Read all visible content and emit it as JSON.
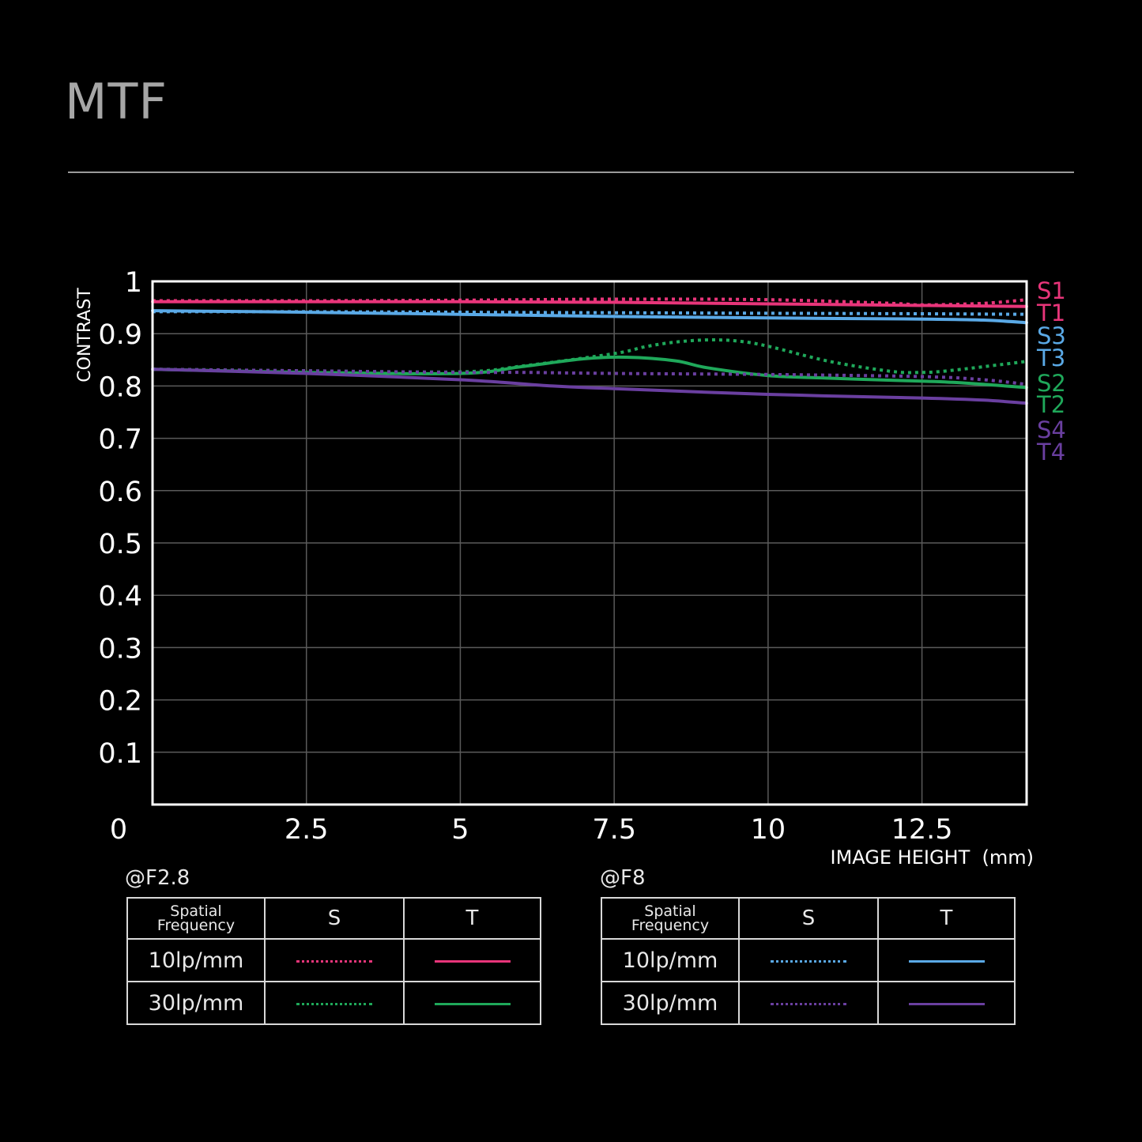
{
  "title": "MTF",
  "chart_data": {
    "type": "line",
    "ylabel": "CONTRAST",
    "xlabel": "IMAGE HEIGHT  (mm)",
    "xlim": [
      0,
      14.2
    ],
    "ylim": [
      0,
      1
    ],
    "x_ticks": [
      "0",
      "2.5",
      "5",
      "7.5",
      "10",
      "12.5"
    ],
    "x_tick_values": [
      0,
      2.5,
      5,
      7.5,
      10,
      12.5
    ],
    "y_ticks": [
      "1",
      "0.9",
      "0.8",
      "0.7",
      "0.6",
      "0.5",
      "0.4",
      "0.3",
      "0.2",
      "0.1"
    ],
    "y_tick_values": [
      1,
      0.9,
      0.8,
      0.7,
      0.6,
      0.5,
      0.4,
      0.3,
      0.2,
      0.1
    ],
    "grid": true,
    "series": [
      {
        "name": "S1",
        "color": "#e8357a",
        "dash": true,
        "x": [
          0,
          2.5,
          5,
          7.5,
          10,
          12,
          12.5,
          13.5,
          14.2
        ],
        "y": [
          0.963,
          0.963,
          0.964,
          0.966,
          0.965,
          0.958,
          0.955,
          0.958,
          0.965
        ]
      },
      {
        "name": "T1",
        "color": "#e8357a",
        "dash": false,
        "x": [
          0,
          2.5,
          5,
          7.5,
          10,
          12.5,
          14.2
        ],
        "y": [
          0.961,
          0.961,
          0.961,
          0.96,
          0.957,
          0.954,
          0.952
        ]
      },
      {
        "name": "S3",
        "color": "#5aa9e6",
        "dash": true,
        "x": [
          0,
          2.5,
          5,
          7.5,
          10,
          12.5,
          14.2
        ],
        "y": [
          0.942,
          0.942,
          0.941,
          0.94,
          0.939,
          0.938,
          0.937
        ]
      },
      {
        "name": "T3",
        "color": "#5aa9e6",
        "dash": false,
        "x": [
          0,
          2.5,
          5,
          7.5,
          10,
          12.5,
          13.5,
          14.2
        ],
        "y": [
          0.944,
          0.941,
          0.937,
          0.933,
          0.93,
          0.928,
          0.926,
          0.921
        ]
      },
      {
        "name": "S2",
        "color": "#1fa85a",
        "dash": true,
        "x": [
          0,
          2.5,
          5,
          6,
          7.5,
          8,
          8.5,
          9,
          9.5,
          10,
          11,
          12,
          12.5,
          13,
          14.2
        ],
        "y": [
          0.832,
          0.829,
          0.827,
          0.838,
          0.862,
          0.875,
          0.884,
          0.888,
          0.886,
          0.876,
          0.847,
          0.828,
          0.826,
          0.83,
          0.847
        ]
      },
      {
        "name": "T2",
        "color": "#1fa85a",
        "dash": false,
        "x": [
          0,
          2.5,
          5,
          6,
          7,
          7.7,
          8.5,
          9,
          10,
          11,
          12,
          13,
          14.2
        ],
        "y": [
          0.832,
          0.826,
          0.824,
          0.837,
          0.852,
          0.855,
          0.848,
          0.835,
          0.82,
          0.815,
          0.811,
          0.807,
          0.797
        ]
      },
      {
        "name": "S4",
        "color": "#6a3fa0",
        "dash": true,
        "x": [
          0,
          2.5,
          5,
          6,
          7.5,
          10,
          12.5,
          13.5,
          14.2
        ],
        "y": [
          0.832,
          0.829,
          0.826,
          0.826,
          0.824,
          0.822,
          0.818,
          0.812,
          0.803
        ]
      },
      {
        "name": "T4",
        "color": "#6a3fa0",
        "dash": false,
        "x": [
          0,
          2.5,
          5,
          6.5,
          7.5,
          10,
          12.5,
          13.5,
          14.2
        ],
        "y": [
          0.832,
          0.824,
          0.812,
          0.8,
          0.795,
          0.784,
          0.777,
          0.773,
          0.767
        ]
      }
    ],
    "end_labels": [
      {
        "text": "S1",
        "color": "#e8357a"
      },
      {
        "text": "T1",
        "color": "#e8357a"
      },
      {
        "text": "S3",
        "color": "#5aa9e6"
      },
      {
        "text": "T3",
        "color": "#5aa9e6"
      },
      {
        "text": "S2",
        "color": "#1fa85a"
      },
      {
        "text": "T2",
        "color": "#1fa85a"
      },
      {
        "text": "S4",
        "color": "#6a3fa0"
      },
      {
        "text": "T4",
        "color": "#6a3fa0"
      }
    ]
  },
  "legend_f28": {
    "aperture": "@F2.8",
    "header_line1": "Spatial",
    "header_line2": "Frequency",
    "col_s": "S",
    "col_t": "T",
    "row1": "10lp/mm",
    "row2": "30lp/mm",
    "row1_color": "#e8357a",
    "row2_color": "#1fa85a"
  },
  "legend_f8": {
    "aperture": "@F8",
    "header_line1": "Spatial",
    "header_line2": "Frequency",
    "col_s": "S",
    "col_t": "T",
    "row1": "10lp/mm",
    "row2": "30lp/mm",
    "row1_color": "#5aa9e6",
    "row2_color": "#6a3fa0"
  }
}
